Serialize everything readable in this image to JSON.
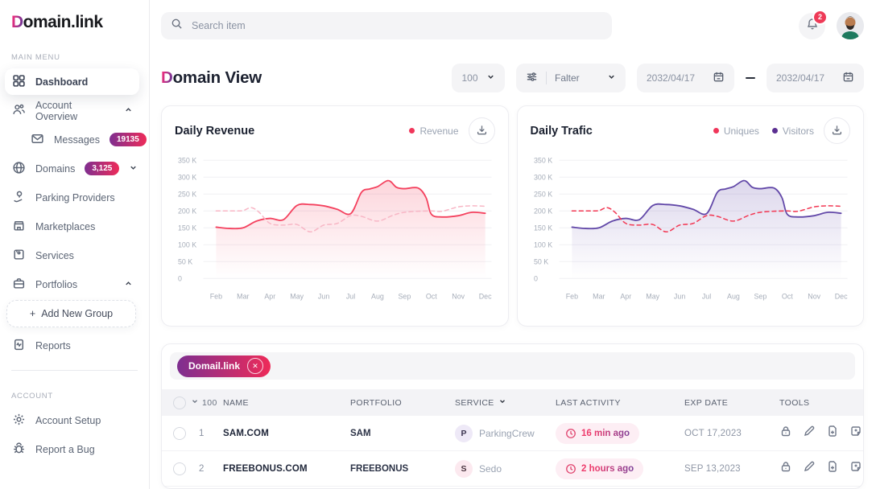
{
  "brand": {
    "logo_accent": "D",
    "logo_rest": "omain.link"
  },
  "topbar": {
    "search_placeholder": "Search item",
    "notification_count": "2"
  },
  "sidebar": {
    "section_main": "MAIN MENU",
    "section_account": "ACCOUNT",
    "dashboard": "Dashboard",
    "account_overview": "Account Overview",
    "messages": "Messages",
    "messages_badge": "19135",
    "domains": "Domains",
    "domains_badge": "3,125",
    "parking_providers": "Parking Providers",
    "marketplaces": "Marketplaces",
    "services": "Services",
    "portfolios": "Portfolios",
    "add_plus": "+",
    "add_new_group": "Add New Group",
    "reports": "Reports",
    "account_setup": "Account Setup",
    "report_a_bug": "Report a Bug"
  },
  "header": {
    "title_accent": "D",
    "title_rest": "omain View",
    "page_size": "100",
    "filter_label": "Falter",
    "date_from": "2032/04/17",
    "date_to": "2032/04/17"
  },
  "charts": {
    "revenue": {
      "title": "Daily Revenue",
      "legend_revenue": "Revenue"
    },
    "traffic": {
      "title": "Daily Trafic",
      "legend_uniques": "Uniques",
      "legend_visitors": "Visitors"
    }
  },
  "chart_data": [
    {
      "type": "area",
      "title": "Daily Revenue",
      "x_ticks": [
        "Feb",
        "Mar",
        "Apr",
        "May",
        "Jun",
        "Jul",
        "Aug",
        "Sep",
        "Oct",
        "Nov",
        "Dec"
      ],
      "y_ticks": [
        "0",
        "50 K",
        "100 K",
        "150 K",
        "200 K",
        "250 K",
        "300 K",
        "350 K"
      ],
      "ylim": [
        0,
        350
      ],
      "unit": "thousands (K)",
      "grid": true,
      "legend_position": "top-right",
      "series": [
        {
          "name": "Revenue",
          "style": "solid-area",
          "color": "#f4415e",
          "x": [
            2,
            2.5,
            3,
            3.5,
            4,
            4.5,
            5,
            5.5,
            6,
            6.5,
            7,
            7.4,
            7.7,
            8,
            8.4,
            8.7,
            9,
            9.5,
            9.8,
            10,
            10.4,
            11,
            11.5,
            12
          ],
          "values": [
            152,
            148,
            150,
            170,
            178,
            174,
            216,
            219,
            215,
            205,
            192,
            255,
            265,
            272,
            290,
            270,
            266,
            268,
            240,
            190,
            182,
            186,
            196,
            193
          ]
        },
        {
          "name": "Revenue (comparison, dashed)",
          "style": "dashed",
          "color": "#f8b7c6",
          "x": [
            2,
            2.6,
            3,
            3.3,
            3.6,
            4,
            4.5,
            5,
            5.5,
            6,
            6.5,
            7,
            7.4,
            8,
            8.6,
            9,
            9.5,
            10,
            10.4,
            11,
            11.5,
            12
          ],
          "values": [
            200,
            200,
            201,
            210,
            196,
            163,
            158,
            160,
            138,
            158,
            163,
            186,
            184,
            170,
            188,
            196,
            199,
            200,
            199,
            212,
            215,
            214
          ]
        }
      ]
    },
    {
      "type": "area",
      "title": "Daily Trafic",
      "x_ticks": [
        "Feb",
        "Mar",
        "Apr",
        "May",
        "Jun",
        "Jul",
        "Aug",
        "Sep",
        "Oct",
        "Nov",
        "Dec"
      ],
      "y_ticks": [
        "0",
        "50 K",
        "100 K",
        "150 K",
        "200 K",
        "250 K",
        "300 K",
        "350 K"
      ],
      "ylim": [
        0,
        350
      ],
      "unit": "thousands (K)",
      "grid": true,
      "legend_position": "top-right",
      "series": [
        {
          "name": "Visitors",
          "style": "solid-area",
          "color": "#6248a8",
          "x": [
            2,
            2.5,
            3,
            3.5,
            4,
            4.5,
            5,
            5.5,
            6,
            6.5,
            7,
            7.4,
            7.7,
            8,
            8.4,
            8.7,
            9,
            9.5,
            9.8,
            10,
            10.4,
            11,
            11.5,
            12
          ],
          "values": [
            152,
            148,
            150,
            170,
            178,
            174,
            216,
            219,
            215,
            205,
            192,
            255,
            265,
            272,
            290,
            270,
            266,
            268,
            240,
            190,
            182,
            186,
            196,
            193
          ]
        },
        {
          "name": "Uniques",
          "style": "dashed",
          "color": "#f23a55",
          "x": [
            2,
            2.6,
            3,
            3.3,
            3.6,
            4,
            4.5,
            5,
            5.5,
            6,
            6.5,
            7,
            7.4,
            8,
            8.6,
            9,
            9.5,
            10,
            10.4,
            11,
            11.5,
            12
          ],
          "values": [
            200,
            200,
            201,
            210,
            196,
            163,
            158,
            160,
            138,
            158,
            163,
            186,
            184,
            170,
            188,
            196,
            199,
            200,
            199,
            212,
            215,
            214
          ]
        }
      ]
    }
  ],
  "table": {
    "chip_label": "Domail.link",
    "chip_close": "✕",
    "count": "100",
    "columns": [
      "NAME",
      "PORTFOLIO",
      "SERVICE",
      "LAST ACTIVITY",
      "EXP DATE",
      "TOOLS"
    ],
    "rows": [
      {
        "num": "1",
        "name": "SAM.COM",
        "portfolio": "SAM",
        "service_initial": "P",
        "service": "ParkingCrew",
        "last_activity": "16 min ago",
        "exp_date": "OCT 17,2023"
      },
      {
        "num": "2",
        "name": "FREEBONUS.COM",
        "portfolio": "FREEBONUS",
        "service_initial": "S",
        "service": "Sedo",
        "last_activity": "2 hours ago",
        "exp_date": "SEP 13,2023"
      }
    ]
  },
  "colors": {
    "accent_gradient_from": "#7e2f90",
    "accent_gradient_to": "#ee2b59",
    "revenue_line": "#f4415e",
    "revenue_dashed": "#f8b7c6",
    "visitors_line": "#6248a8",
    "uniques_dashed": "#f23a55",
    "notification_badge": "#ee3a57"
  }
}
